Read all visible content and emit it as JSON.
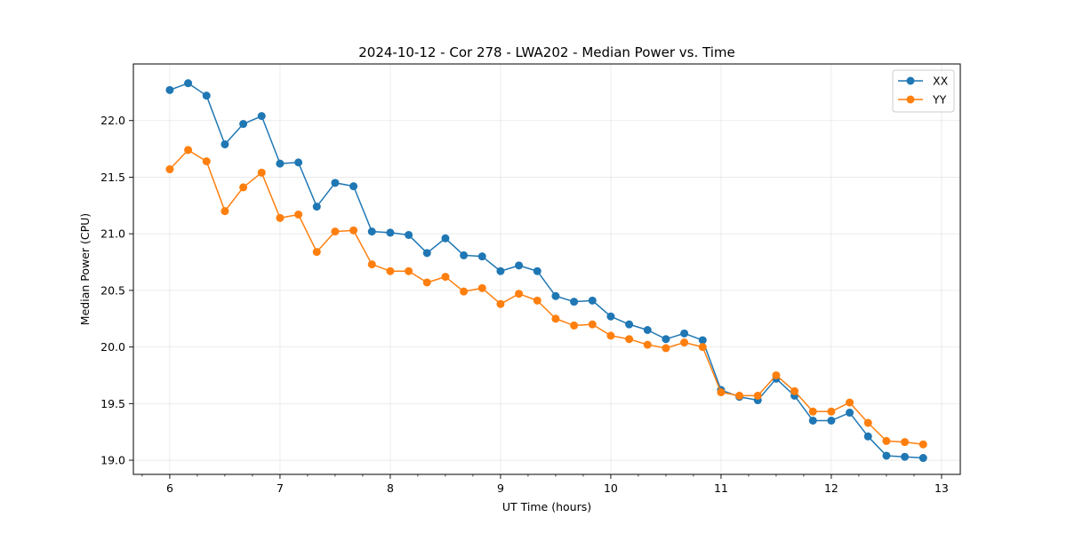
{
  "chart_data": {
    "type": "line",
    "title": "2024-10-12 - Cor 278 - LWA202 - Median Power vs. Time",
    "xlabel": "UT Time (hours)",
    "ylabel": "Median Power (CPU)",
    "xlim": [
      5.67,
      13.17
    ],
    "ylim": [
      18.875,
      22.5
    ],
    "xticks": [
      6,
      7,
      8,
      9,
      10,
      11,
      12,
      13
    ],
    "yticks": [
      19.0,
      19.5,
      20.0,
      20.5,
      21.0,
      21.5,
      22.0
    ],
    "grid": true,
    "legend_position": "top-right",
    "x": [
      6.0,
      6.1667,
      6.3333,
      6.5,
      6.6667,
      6.8333,
      7.0,
      7.1667,
      7.3333,
      7.5,
      7.6667,
      7.8333,
      8.0,
      8.1667,
      8.3333,
      8.5,
      8.6667,
      8.8333,
      9.0,
      9.1667,
      9.3333,
      9.5,
      9.6667,
      9.8333,
      10.0,
      10.1667,
      10.3333,
      10.5,
      10.6667,
      10.8333,
      11.0,
      11.1667,
      11.3333,
      11.5,
      11.6667,
      11.8333,
      12.0,
      12.1667,
      12.3333,
      12.5,
      12.6667,
      12.8333
    ],
    "series": [
      {
        "name": "XX",
        "color": "#1f77b4",
        "values": [
          22.27,
          22.33,
          22.22,
          21.79,
          21.97,
          22.04,
          21.62,
          21.63,
          21.24,
          21.45,
          21.42,
          21.02,
          21.01,
          20.99,
          20.83,
          20.96,
          20.81,
          20.8,
          20.67,
          20.72,
          20.67,
          20.45,
          20.4,
          20.41,
          20.27,
          20.2,
          20.15,
          20.07,
          20.12,
          20.06,
          19.62,
          19.56,
          19.53,
          19.72,
          19.57,
          19.35,
          19.35,
          19.42,
          19.21,
          19.04,
          19.03,
          19.02
        ]
      },
      {
        "name": "YY",
        "color": "#ff7f0e",
        "values": [
          21.57,
          21.74,
          21.64,
          21.2,
          21.41,
          21.54,
          21.14,
          21.17,
          20.84,
          21.02,
          21.03,
          20.73,
          20.67,
          20.67,
          20.57,
          20.62,
          20.49,
          20.52,
          20.38,
          20.47,
          20.41,
          20.25,
          20.19,
          20.2,
          20.1,
          20.07,
          20.02,
          19.99,
          20.04,
          20.0,
          19.6,
          19.57,
          19.57,
          19.75,
          19.61,
          19.43,
          19.43,
          19.51,
          19.33,
          19.17,
          19.16,
          19.14
        ]
      }
    ]
  }
}
